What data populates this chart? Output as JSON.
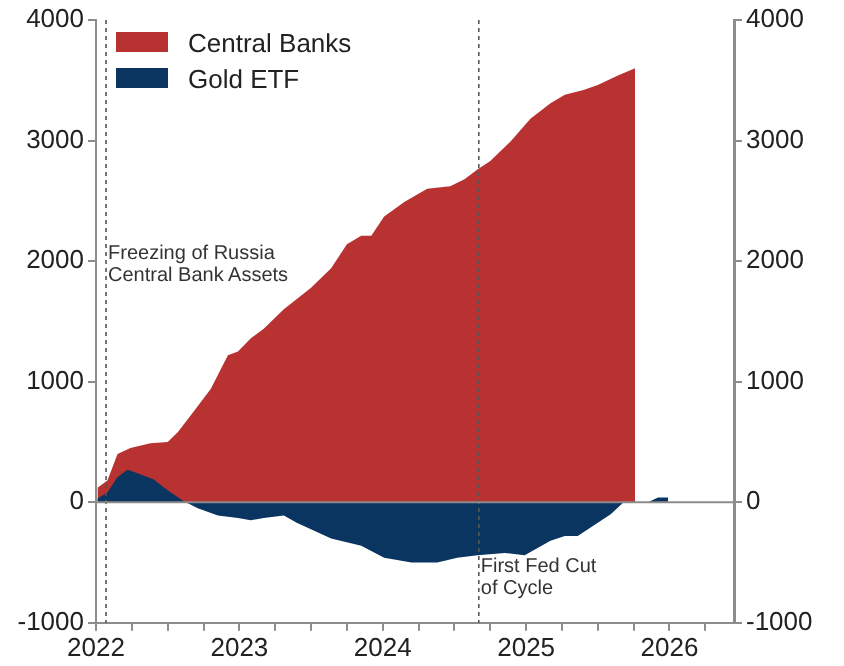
{
  "chart_data": {
    "type": "area",
    "series": [
      {
        "name": "Central Banks",
        "color": "#b83232",
        "x": [
          2022.01,
          2022.08,
          2022.15,
          2022.24,
          2022.38,
          2022.5,
          2022.57,
          2022.66,
          2022.8,
          2022.92,
          2022.99,
          2023.08,
          2023.17,
          2023.31,
          2023.5,
          2023.64,
          2023.75,
          2023.85,
          2023.92,
          2024.01,
          2024.15,
          2024.31,
          2024.47,
          2024.57,
          2024.66,
          2024.75,
          2024.89,
          2025.03,
          2025.17,
          2025.27,
          2025.4,
          2025.5,
          2025.64,
          2025.76
        ],
        "values": [
          120,
          180,
          400,
          450,
          490,
          500,
          580,
          720,
          940,
          1220,
          1250,
          1360,
          1440,
          1600,
          1780,
          1940,
          2140,
          2210,
          2210,
          2370,
          2490,
          2600,
          2620,
          2680,
          2760,
          2830,
          2990,
          3180,
          3310,
          3380,
          3420,
          3460,
          3540,
          3600
        ]
      },
      {
        "name": "Gold ETF",
        "color": "#0a3560",
        "x": [
          2022.01,
          2022.08,
          2022.15,
          2022.22,
          2022.29,
          2022.4,
          2022.5,
          2022.61,
          2022.71,
          2022.85,
          2022.99,
          2023.08,
          2023.17,
          2023.31,
          2023.4,
          2023.64,
          2023.85,
          2024.01,
          2024.2,
          2024.38,
          2024.52,
          2024.66,
          2024.85,
          2024.99,
          2025.17,
          2025.27,
          2025.36,
          2025.5,
          2025.59,
          2025.68,
          2025.78,
          2025.85,
          2025.92,
          2025.99
        ],
        "values": [
          30,
          80,
          210,
          270,
          240,
          190,
          100,
          10,
          -50,
          -110,
          -130,
          -150,
          -130,
          -110,
          -170,
          -300,
          -360,
          -460,
          -500,
          -500,
          -460,
          -440,
          -420,
          -440,
          -320,
          -280,
          -280,
          -170,
          -100,
          0,
          0,
          0,
          40,
          40
        ]
      }
    ],
    "xlim": [
      2022,
      2026.45
    ],
    "xticks": [
      2022,
      {
        "value": 2022.25,
        "label": null
      },
      {
        "value": 2022.5,
        "label": null
      },
      {
        "value": 2022.75,
        "label": null
      },
      2023,
      {
        "value": 2023.25,
        "label": null
      },
      {
        "value": 2023.5,
        "label": null
      },
      {
        "value": 2023.75,
        "label": null
      },
      2024,
      {
        "value": 2024.25,
        "label": null
      },
      {
        "value": 2024.5,
        "label": null
      },
      {
        "value": 2024.75,
        "label": null
      },
      2025,
      {
        "value": 2025.25,
        "label": null
      },
      {
        "value": 2025.5,
        "label": null
      },
      {
        "value": 2025.75,
        "label": null
      },
      2026,
      {
        "value": 2026.25,
        "label": null
      }
    ],
    "ylim": [
      -1000,
      4000
    ],
    "yticks": [
      -1000,
      0,
      1000,
      2000,
      3000,
      4000
    ],
    "y2lim": [
      -1000,
      4000
    ],
    "y2ticks": [
      -1000,
      0,
      1000,
      2000,
      3000,
      4000
    ],
    "ref_lines": [
      {
        "axis": "x",
        "value": 2022.07,
        "label": "Freezing of Russia\nCentral Bank Assets",
        "line_style": "dotted"
      },
      {
        "axis": "x",
        "value": 2024.67,
        "label": "First Fed Cut\nof Cycle",
        "line_style": "dotted"
      },
      {
        "axis": "y",
        "value": 0,
        "color": "#8c8c8c",
        "line_style": "solid"
      }
    ],
    "legend": "top left",
    "grid": false
  }
}
